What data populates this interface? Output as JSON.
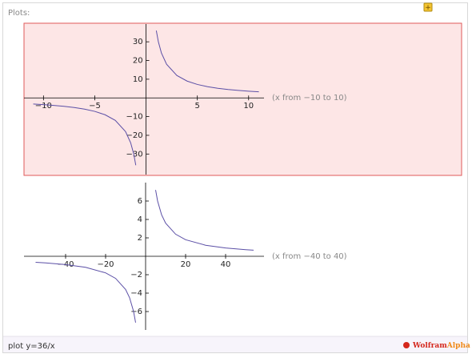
{
  "header": {
    "title": "Plots:"
  },
  "chart_data": [
    {
      "type": "line",
      "caption": "(x from −10 to 10)",
      "x": [
        -11,
        -10,
        -9,
        -8,
        -7,
        -6,
        -5,
        -4,
        -3,
        -2,
        -1.5,
        -1.2,
        -1,
        0,
        1,
        1.2,
        1.5,
        2,
        3,
        4,
        5,
        6,
        7,
        8,
        9,
        10,
        11
      ],
      "series": [
        {
          "color": "#5b4fa6",
          "values": [
            -3.2727,
            -3.6,
            -4,
            -4.5,
            -5.1429,
            -6,
            -7.2,
            -9,
            -12,
            -18,
            -24,
            -30,
            -36,
            null,
            36,
            30,
            24,
            18,
            12,
            9,
            7.2,
            6,
            5.1429,
            4.5,
            4,
            3.6,
            3.2727
          ]
        }
      ],
      "xlim": [
        -11.9,
        11.5
      ],
      "ylim": [
        -41,
        39.5
      ],
      "xticks": [
        {
          "value": -10,
          "label": "−10"
        },
        {
          "value": -5,
          "label": "−5"
        },
        5,
        10
      ],
      "yticks": [
        {
          "value": -30,
          "label": "−30"
        },
        {
          "value": -20,
          "label": "−20"
        },
        {
          "value": -10,
          "label": "−10"
        },
        10,
        20,
        30
      ],
      "highlight": true
    },
    {
      "type": "line",
      "caption": "(x from −40 to 40)",
      "x": [
        -55,
        -50,
        -40,
        -30,
        -20,
        -15,
        -10,
        -8,
        -6,
        -5,
        0,
        5,
        6,
        8,
        10,
        15,
        20,
        30,
        40,
        50,
        54
      ],
      "series": [
        {
          "color": "#5b4fa6",
          "values": [
            -0.6545,
            -0.72,
            -0.9,
            -1.2,
            -1.8,
            -2.4,
            -3.6,
            -4.5,
            -6,
            -7.2,
            null,
            7.2,
            6,
            4.5,
            3.6,
            2.4,
            1.8,
            1.2,
            0.9,
            0.72,
            0.6667
          ]
        }
      ],
      "xlim": [
        -60.8,
        59.2
      ],
      "ylim": [
        -8,
        8
      ],
      "xticks": [
        {
          "value": -40,
          "label": "−40"
        },
        {
          "value": -20,
          "label": "−20"
        },
        20,
        40
      ],
      "yticks": [
        {
          "value": -6,
          "label": "−6"
        },
        {
          "value": -4,
          "label": "−4"
        },
        {
          "value": -2,
          "label": "−2"
        },
        2,
        4,
        6
      ],
      "highlight": false
    }
  ],
  "footer": {
    "input": "plot y=36/x",
    "logo_a": "Wolfram",
    "logo_b": "Alpha"
  }
}
